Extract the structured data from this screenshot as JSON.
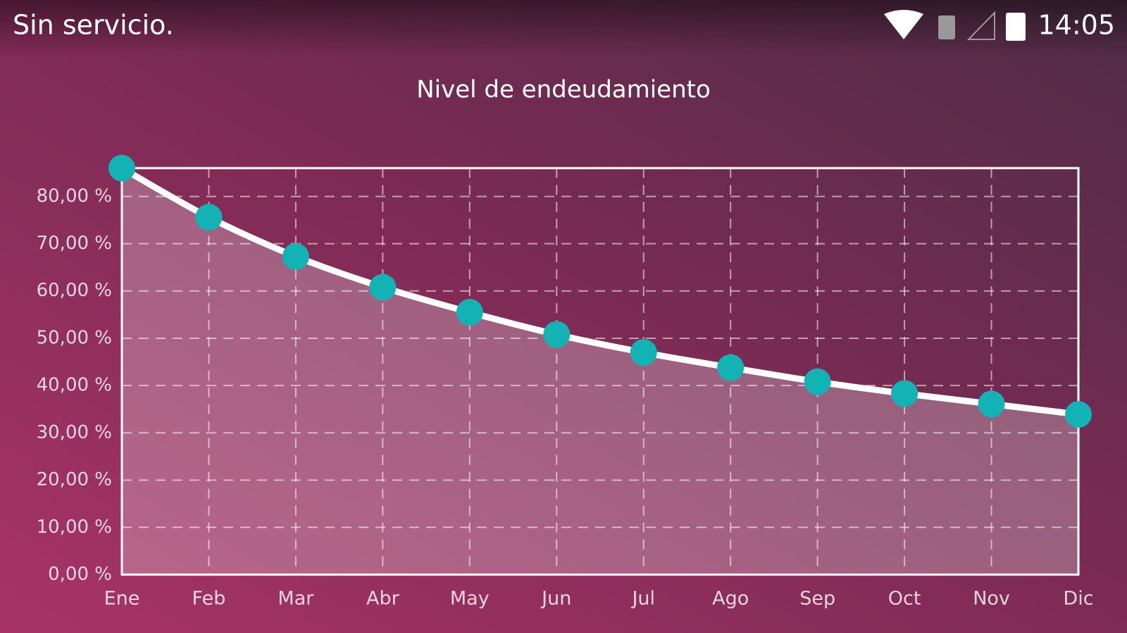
{
  "status_bar": {
    "carrier": "Sin servicio.",
    "time": "14:05"
  },
  "chart_data": {
    "type": "line",
    "title": "Nivel de endeudamiento",
    "categories": [
      "Ene",
      "Feb",
      "Mar",
      "Abr",
      "May",
      "Jun",
      "Jul",
      "Ago",
      "Sep",
      "Oct",
      "Nov",
      "Dic"
    ],
    "values": [
      86,
      75.6,
      67.3,
      60.8,
      55.5,
      50.8,
      47.0,
      43.8,
      40.8,
      38.3,
      36.1,
      33.9
    ],
    "color": "#ffffff",
    "marker_color": "#13b3b5",
    "area": true,
    "grid": true,
    "ylim": [
      0,
      86
    ],
    "yticks": [
      {
        "value": 0,
        "label": "0,00 %"
      },
      {
        "value": 10,
        "label": "10,00 %"
      },
      {
        "value": 20,
        "label": "20,00 %"
      },
      {
        "value": 30,
        "label": "30,00 %"
      },
      {
        "value": 40,
        "label": "40,00 %"
      },
      {
        "value": 50,
        "label": "50,00 %"
      },
      {
        "value": 60,
        "label": "60,00 %"
      },
      {
        "value": 70,
        "label": "70,00 %"
      },
      {
        "value": 80,
        "label": "80,00 %"
      }
    ]
  }
}
